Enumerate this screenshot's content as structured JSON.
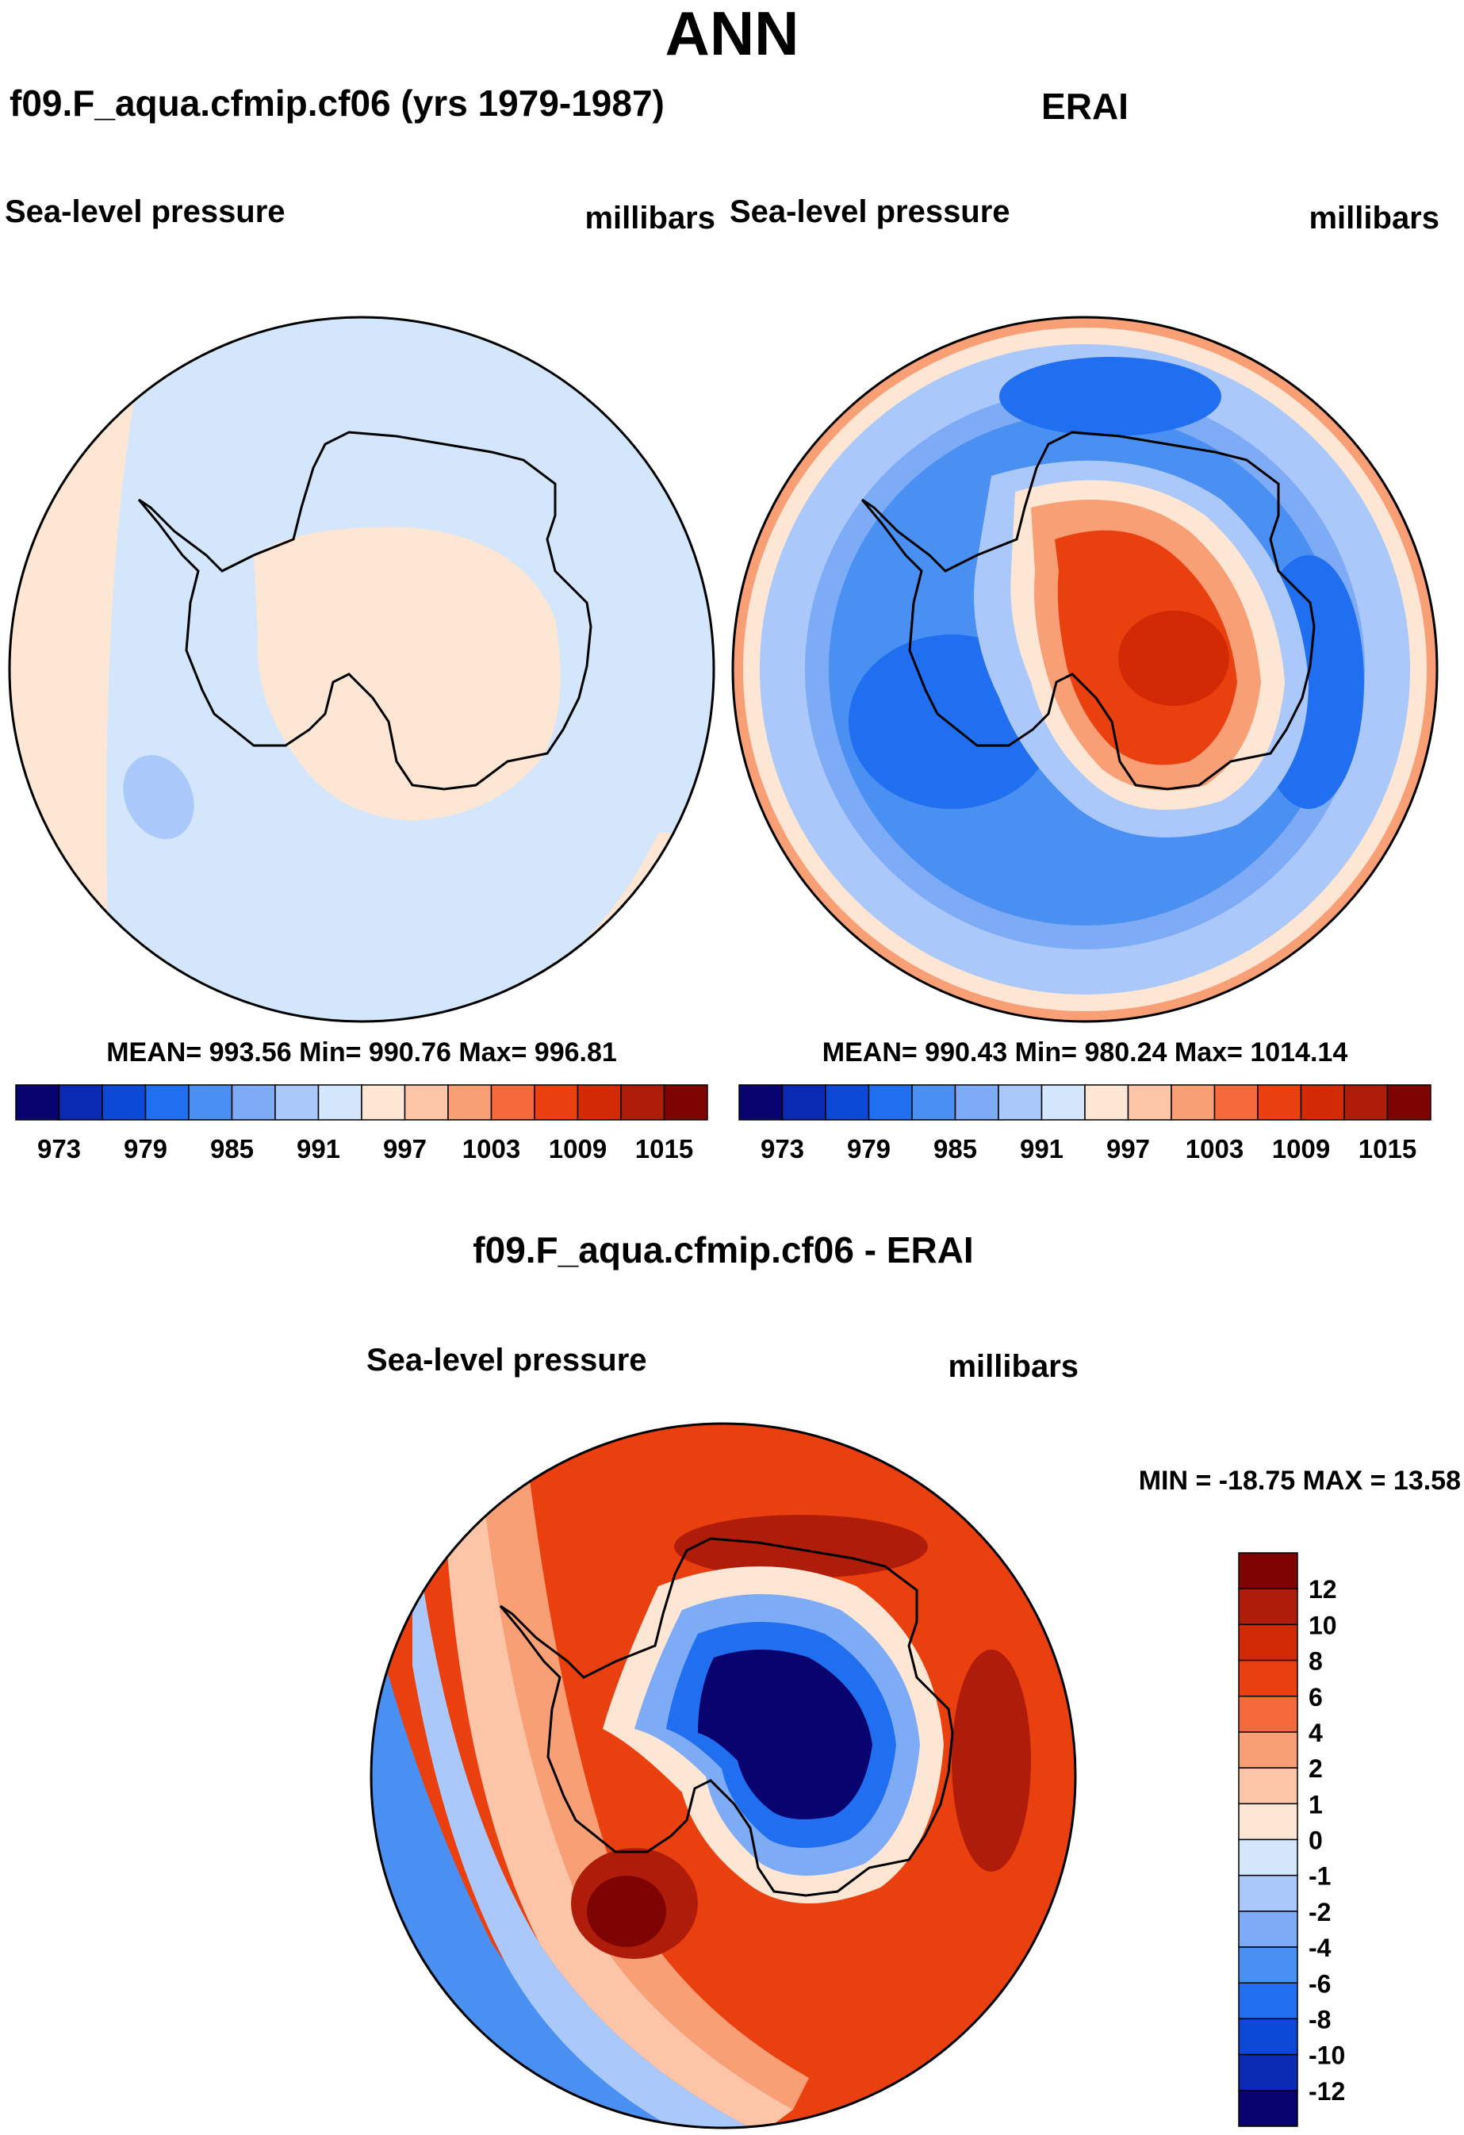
{
  "page": {
    "title": "ANN",
    "colors": {
      "sequential": [
        "#08036e",
        "#0a2ab4",
        "#0b49d6",
        "#1f6ff0",
        "#4a8ff2",
        "#7eabf6",
        "#aac8fa",
        "#d4e6fc",
        "#fde6d3",
        "#fcc5a8",
        "#f89f76",
        "#f46a3c",
        "#ea4010",
        "#d12a04",
        "#b01c0a",
        "#7e0404"
      ],
      "continent_outline": "#000000",
      "frame_outline": "#000000"
    }
  },
  "panels": [
    {
      "id": "model",
      "title": "f09.F_aqua.cfmip.cf06 (yrs 1979-1987)",
      "variable": "Sea-level pressure",
      "units": "millibars",
      "stats": "MEAN= 993.56  Min= 990.76  Max= 996.81",
      "colorbar_labels": [
        "973",
        "979",
        "985",
        "991",
        "997",
        "1003",
        "1009",
        "1015"
      ]
    },
    {
      "id": "obs",
      "title": "ERAI",
      "variable": "Sea-level pressure",
      "units": "millibars",
      "stats": "MEAN= 990.43  Min= 980.24  Max= 1014.14",
      "colorbar_labels": [
        "973",
        "979",
        "985",
        "991",
        "997",
        "1003",
        "1009",
        "1015"
      ]
    },
    {
      "id": "diff",
      "title": "f09.F_aqua.cfmip.cf06 - ERAI",
      "variable": "Sea-level pressure",
      "units": "millibars",
      "stats": "MIN = -18.75 MAX =  13.58",
      "colorbar_labels": [
        "12",
        "10",
        "8",
        "6",
        "4",
        "2",
        "1",
        "0",
        "-1",
        "-2",
        "-4",
        "-6",
        "-8",
        "-10",
        "-12"
      ]
    }
  ]
}
